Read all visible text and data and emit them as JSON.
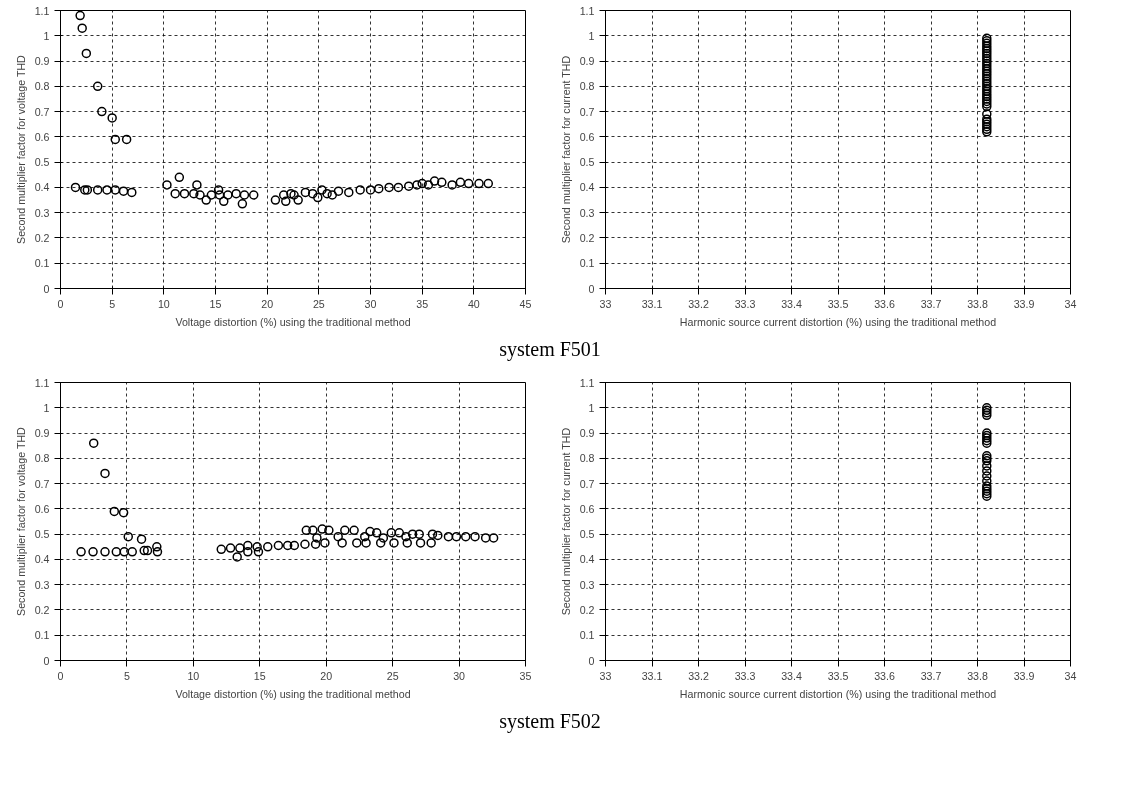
{
  "chart_data": [
    {
      "type": "scatter",
      "marker": "circle",
      "grid": true,
      "xlabel": "Voltage distortion (%) using the traditional method",
      "ylabel": "Second multiplier factor for voltage THD",
      "xlim": [
        0,
        45
      ],
      "ylim": [
        0,
        1.1
      ],
      "xticks": [
        0,
        5,
        10,
        15,
        20,
        25,
        30,
        35,
        40,
        45
      ],
      "yticks": [
        0,
        0.1,
        0.2,
        0.3,
        0.4,
        0.5,
        0.6,
        0.7,
        0.8,
        0.9,
        1,
        1.1
      ],
      "annotations": [
        "system F501"
      ],
      "series": [
        {
          "color": "#000000",
          "x": [
            1.9,
            2.1,
            2.5,
            3.6,
            4.0,
            5.0,
            5.3,
            6.4,
            1.45,
            2.35,
            2.6,
            3.6,
            4.5,
            5.3,
            6.1,
            6.9,
            10.3,
            11.5,
            11.1,
            12.0,
            12.9,
            13.2,
            13.5,
            14.1,
            14.6,
            15.3,
            15.4,
            15.8,
            16.2,
            17.0,
            17.6,
            17.8,
            18.7,
            20.8,
            21.6,
            21.8,
            22.3,
            22.6,
            23.0,
            23.7,
            24.4,
            24.9,
            25.3,
            25.8,
            26.3,
            26.9,
            27.9,
            29.0,
            30.0,
            30.8,
            31.8,
            32.7,
            33.7,
            34.5,
            35.0,
            35.6,
            36.2,
            36.9,
            37.9,
            38.7,
            39.5,
            40.5,
            41.4
          ],
          "values": [
            1.08,
            1.03,
            0.93,
            0.8,
            0.7,
            0.675,
            0.59,
            0.59,
            0.4,
            0.39,
            0.39,
            0.39,
            0.39,
            0.39,
            0.385,
            0.38,
            0.41,
            0.44,
            0.375,
            0.375,
            0.375,
            0.41,
            0.37,
            0.35,
            0.37,
            0.39,
            0.37,
            0.345,
            0.37,
            0.375,
            0.335,
            0.37,
            0.37,
            0.35,
            0.37,
            0.345,
            0.375,
            0.37,
            0.35,
            0.38,
            0.375,
            0.36,
            0.39,
            0.375,
            0.37,
            0.385,
            0.38,
            0.39,
            0.39,
            0.395,
            0.4,
            0.4,
            0.405,
            0.41,
            0.415,
            0.41,
            0.425,
            0.42,
            0.41,
            0.42,
            0.415,
            0.415,
            0.415
          ]
        }
      ]
    },
    {
      "type": "scatter",
      "marker": "circle",
      "grid": true,
      "xlabel": "Harmonic source current distortion (%) using the traditional method",
      "ylabel": "Second multiplier factor for current THD",
      "xlim": [
        33,
        34
      ],
      "ylim": [
        0,
        1.1
      ],
      "xticks": [
        33,
        33.1,
        33.2,
        33.3,
        33.4,
        33.5,
        33.6,
        33.7,
        33.8,
        33.9,
        34
      ],
      "yticks": [
        0,
        0.1,
        0.2,
        0.3,
        0.4,
        0.5,
        0.6,
        0.7,
        0.8,
        0.9,
        1,
        1.1
      ],
      "series": [
        {
          "color": "#000000",
          "x": [
            33.82,
            33.82,
            33.82,
            33.82,
            33.82,
            33.82,
            33.82,
            33.82,
            33.82,
            33.82,
            33.82,
            33.82,
            33.82,
            33.82,
            33.82,
            33.82,
            33.82,
            33.82,
            33.82,
            33.82,
            33.82,
            33.82,
            33.82,
            33.82,
            33.82,
            33.82,
            33.82,
            33.82,
            33.82,
            33.82,
            33.82,
            33.82,
            33.82,
            33.82,
            33.82
          ],
          "values": [
            0.99,
            0.98,
            0.97,
            0.96,
            0.95,
            0.94,
            0.93,
            0.92,
            0.91,
            0.9,
            0.89,
            0.88,
            0.87,
            0.86,
            0.85,
            0.84,
            0.83,
            0.82,
            0.81,
            0.8,
            0.79,
            0.78,
            0.77,
            0.76,
            0.75,
            0.74,
            0.73,
            0.72,
            0.69,
            0.67,
            0.66,
            0.65,
            0.64,
            0.63,
            0.62
          ]
        }
      ]
    },
    {
      "type": "scatter",
      "marker": "circle",
      "grid": true,
      "xlabel": "Voltage distortion (%) using the traditional method",
      "ylabel": "Second multiplier factor for voltage THD",
      "xlim": [
        0,
        35
      ],
      "ylim": [
        0,
        1.1
      ],
      "xticks": [
        0,
        5,
        10,
        15,
        20,
        25,
        30,
        35
      ],
      "yticks": [
        0,
        0.1,
        0.2,
        0.3,
        0.4,
        0.5,
        0.6,
        0.7,
        0.8,
        0.9,
        1,
        1.1
      ],
      "annotations": [
        "system F502"
      ],
      "series": [
        {
          "color": "#000000",
          "x": [
            2.5,
            3.35,
            4.05,
            4.75,
            5.1,
            6.1,
            7.25,
            1.55,
            2.45,
            3.35,
            4.2,
            4.8,
            5.4,
            6.3,
            6.55,
            7.3,
            12.1,
            12.8,
            13.3,
            13.5,
            14.1,
            14.1,
            14.8,
            14.9,
            15.6,
            16.4,
            17.1,
            17.6,
            18.4,
            18.5,
            19.0,
            19.3,
            19.2,
            19.7,
            20.2,
            19.9,
            20.9,
            21.4,
            22.1,
            21.2,
            22.3,
            22.9,
            23.3,
            23.8,
            23.0,
            24.3,
            24.9,
            25.5,
            24.1,
            25.1,
            26.0,
            26.5,
            27.0,
            26.1,
            27.1,
            27.9,
            28.0,
            28.4,
            29.2,
            29.8,
            30.5,
            31.2,
            32.0,
            32.6
          ],
          "values": [
            0.86,
            0.74,
            0.59,
            0.585,
            0.49,
            0.48,
            0.45,
            0.43,
            0.43,
            0.43,
            0.43,
            0.43,
            0.43,
            0.435,
            0.435,
            0.43,
            0.44,
            0.445,
            0.41,
            0.445,
            0.455,
            0.43,
            0.45,
            0.43,
            0.45,
            0.455,
            0.455,
            0.455,
            0.46,
            0.515,
            0.515,
            0.485,
            0.46,
            0.52,
            0.515,
            0.465,
            0.49,
            0.515,
            0.515,
            0.465,
            0.465,
            0.49,
            0.51,
            0.505,
            0.465,
            0.485,
            0.505,
            0.505,
            0.465,
            0.465,
            0.49,
            0.5,
            0.5,
            0.465,
            0.465,
            0.465,
            0.5,
            0.495,
            0.49,
            0.49,
            0.49,
            0.49,
            0.485,
            0.485
          ]
        }
      ]
    },
    {
      "type": "scatter",
      "marker": "circle",
      "grid": true,
      "xlabel": "Harmonic source current distortion (%) using the traditional method",
      "ylabel": "Second multiplier factor for current THD",
      "xlim": [
        33,
        34
      ],
      "ylim": [
        0,
        1.1
      ],
      "xticks": [
        33,
        33.1,
        33.2,
        33.3,
        33.4,
        33.5,
        33.6,
        33.7,
        33.8,
        33.9,
        34
      ],
      "yticks": [
        0,
        0.1,
        0.2,
        0.3,
        0.4,
        0.5,
        0.6,
        0.7,
        0.8,
        0.9,
        1,
        1.1
      ],
      "series": [
        {
          "color": "#000000",
          "x": [
            33.82,
            33.82,
            33.82,
            33.82,
            33.82,
            33.82,
            33.82,
            33.82,
            33.82,
            33.82,
            33.82,
            33.82,
            33.82,
            33.82,
            33.82,
            33.82,
            33.82,
            33.82,
            33.82,
            33.82,
            33.82
          ],
          "values": [
            1.0,
            0.99,
            0.98,
            0.97,
            0.9,
            0.89,
            0.88,
            0.87,
            0.86,
            0.81,
            0.8,
            0.79,
            0.77,
            0.75,
            0.73,
            0.71,
            0.69,
            0.68,
            0.67,
            0.66,
            0.65
          ]
        }
      ]
    }
  ]
}
